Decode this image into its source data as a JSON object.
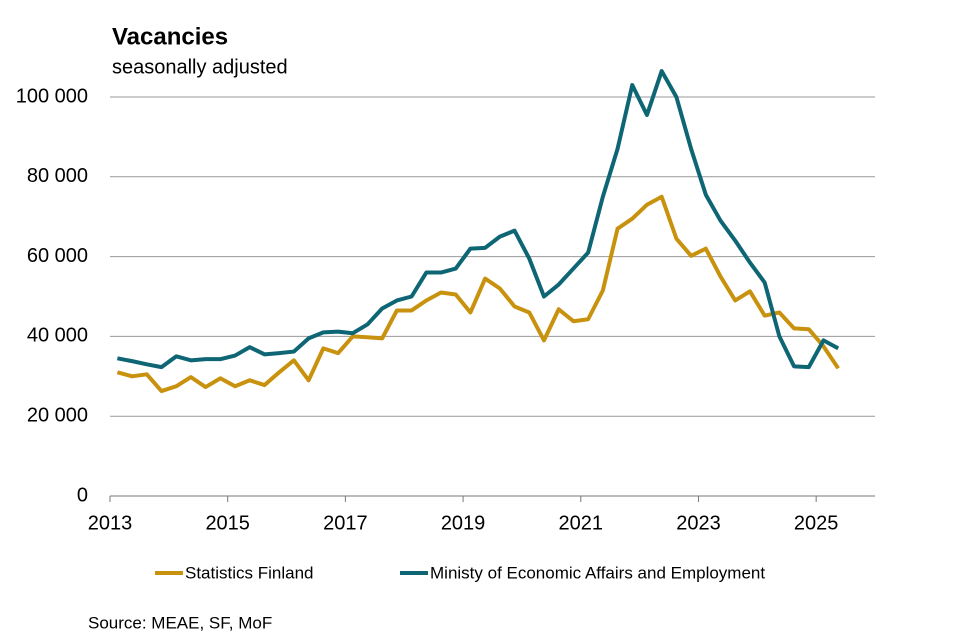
{
  "chart_data": {
    "type": "line",
    "title": "Vacancies",
    "subtitle": "seasonally adjusted",
    "source": "Source: MEAE, SF, MoF",
    "x": [
      2013.125,
      2013.375,
      2013.625,
      2013.875,
      2014.125,
      2014.375,
      2014.625,
      2014.875,
      2015.125,
      2015.375,
      2015.625,
      2015.875,
      2016.125,
      2016.375,
      2016.625,
      2016.875,
      2017.125,
      2017.375,
      2017.625,
      2017.875,
      2018.125,
      2018.375,
      2018.625,
      2018.875,
      2019.125,
      2019.375,
      2019.625,
      2019.875,
      2020.125,
      2020.375,
      2020.625,
      2020.875,
      2021.125,
      2021.375,
      2021.625,
      2021.875,
      2022.125,
      2022.375,
      2022.625,
      2022.875,
      2023.125,
      2023.375,
      2023.625,
      2023.875,
      2024.125,
      2024.375,
      2024.625,
      2024.875,
      2025.125,
      2025.375
    ],
    "series": [
      {
        "name": "Statistics Finland",
        "color": "#c9920e",
        "values": [
          31000,
          30000,
          30500,
          26300,
          27500,
          29800,
          27300,
          29500,
          27500,
          29000,
          27800,
          31000,
          34000,
          29000,
          37000,
          35800,
          40000,
          39800,
          39500,
          46500,
          46500,
          49000,
          51000,
          50500,
          46000,
          54500,
          52000,
          47500,
          46000,
          39000,
          46800,
          43800,
          44300,
          51500,
          67000,
          69500,
          73000,
          75000,
          64500,
          60200,
          62000,
          55000,
          49000,
          51300,
          45200,
          46000,
          42000,
          41800,
          37500,
          32000
        ]
      },
      {
        "name": "Ministy of Economic Affairs and Employment",
        "color": "#0e6675",
        "values": [
          34500,
          33800,
          33000,
          32300,
          35000,
          34000,
          34300,
          34300,
          35200,
          37300,
          35500,
          35800,
          36200,
          39500,
          41000,
          41200,
          40800,
          43000,
          47000,
          49000,
          50000,
          56000,
          56000,
          57000,
          62000,
          62200,
          65000,
          66500,
          59500,
          50000,
          53000,
          57000,
          61000,
          75000,
          87000,
          103000,
          95500,
          106500,
          100000,
          87000,
          75500,
          69000,
          64000,
          58500,
          53500,
          40000,
          32500,
          32300,
          39000,
          37000
        ]
      }
    ],
    "xlim": [
      2013,
      2026
    ],
    "xticks": [
      2013,
      2015,
      2017,
      2019,
      2021,
      2023,
      2025
    ],
    "ylim": [
      0,
      100000
    ],
    "yticks": [
      0,
      {
        "value": 20000,
        "label": "20 000"
      },
      {
        "value": 40000,
        "label": "40 000"
      },
      {
        "value": 60000,
        "label": "60 000"
      },
      {
        "value": 80000,
        "label": "80 000"
      },
      {
        "value": 100000,
        "label": "100 000"
      }
    ],
    "grid": true
  }
}
